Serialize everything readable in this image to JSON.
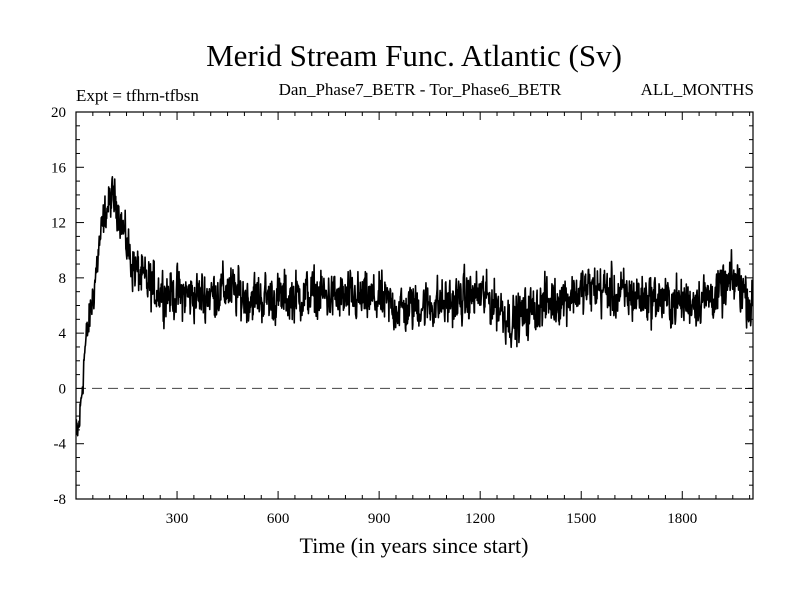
{
  "chart_data": {
    "type": "line",
    "title": "Merid Stream Func. Atlantic (Sv)",
    "subtitle_left": "Expt = tfhrn-tfbsn",
    "subtitle_center": "Dan_Phase7_BETR - Tor_Phase6_BETR",
    "subtitle_right": "ALL_MONTHS",
    "xlabel": "Time (in years since start)",
    "ylabel": "",
    "xlim": [
      0,
      2010
    ],
    "ylim": [
      -8,
      20
    ],
    "xticks": [
      300,
      600,
      900,
      1200,
      1500,
      1800
    ],
    "yticks": [
      -8,
      -4,
      0,
      4,
      8,
      12,
      16,
      20
    ],
    "reference_line": {
      "y": 0,
      "style": "dashed"
    },
    "series": [
      {
        "name": "tfhrn-tfbsn",
        "noise_amplitude": 1.6,
        "x": [
          0,
          8,
          15,
          25,
          40,
          55,
          70,
          85,
          100,
          110,
          120,
          130,
          145,
          160,
          180,
          200,
          230,
          260,
          300,
          350,
          400,
          450,
          500,
          600,
          700,
          800,
          900,
          980,
          1000,
          1100,
          1150,
          1200,
          1250,
          1300,
          1320,
          1400,
          1500,
          1550,
          1600,
          1700,
          1800,
          1900,
          1960,
          1990,
          2010
        ],
        "y": [
          -3.5,
          -3.0,
          -1.0,
          2.5,
          5.0,
          7.5,
          10.5,
          12.5,
          13.5,
          13.8,
          13.5,
          12.5,
          11.0,
          9.5,
          8.5,
          7.8,
          7.2,
          7.0,
          6.8,
          6.7,
          6.8,
          7.2,
          6.6,
          6.5,
          6.8,
          6.5,
          6.4,
          5.6,
          6.0,
          6.2,
          6.5,
          6.8,
          6.0,
          4.8,
          5.2,
          6.2,
          7.0,
          7.3,
          6.8,
          6.6,
          6.2,
          6.8,
          7.8,
          6.8,
          5.6
        ]
      }
    ]
  }
}
